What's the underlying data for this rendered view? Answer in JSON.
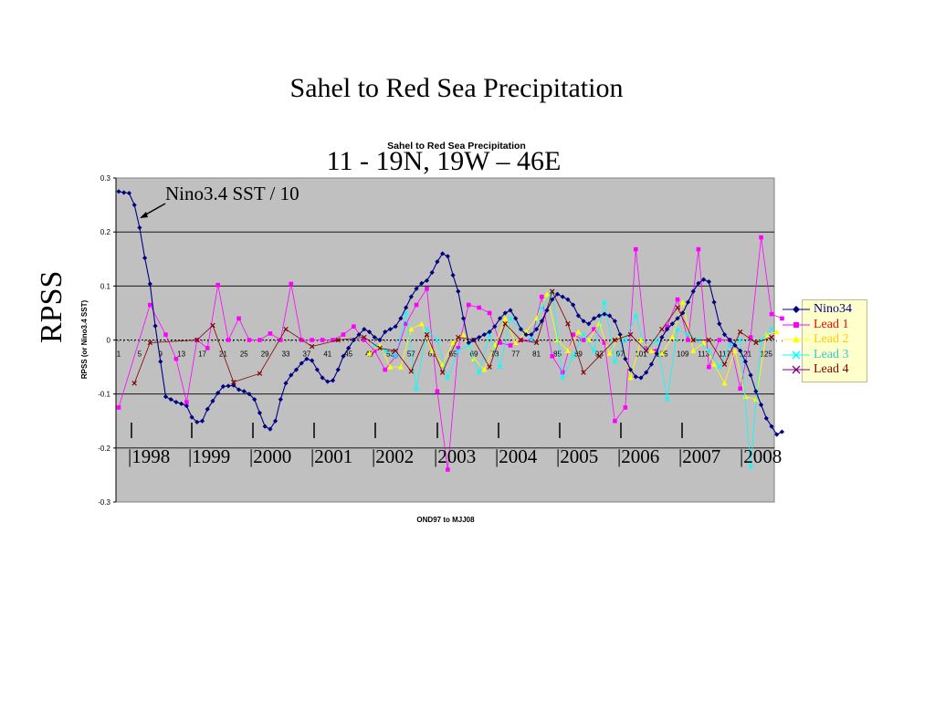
{
  "slide": {
    "title": "Sahel to Red Sea Precipitation",
    "subtitle": "11 - 19N,  19W – 46E",
    "side_label": "RPSS",
    "annotation": "Nino3.4 SST / 10"
  },
  "chart_data": {
    "type": "line",
    "title": "Sahel to Red Sea Precipitation",
    "xlabel": "OND97 to MJJ08",
    "ylabel": "RPSS (or Nino3.4 SST)",
    "ylim": [
      -0.3,
      0.3
    ],
    "yticks": [
      -0.3,
      -0.2,
      -0.1,
      0,
      0.1,
      0.2,
      0.3
    ],
    "yticklabels": [
      "-0.3",
      "-0.2",
      "-0.1",
      "0",
      "0.1",
      "0.2",
      "0.3"
    ],
    "xlim": [
      1,
      128
    ],
    "xticks": [
      1,
      5,
      9,
      13,
      17,
      21,
      25,
      29,
      33,
      37,
      41,
      45,
      49,
      53,
      57,
      61,
      65,
      69,
      73,
      77,
      81,
      85,
      89,
      93,
      97,
      101,
      105,
      109,
      113,
      117,
      121,
      125
    ],
    "grid": "horizontal",
    "plot_background": "#c0c0c0",
    "legend_position": "right",
    "year_labels": [
      "|1998",
      "|1999",
      "|2000",
      "|2001",
      "|2002",
      "|2003",
      "|2004",
      "|2005",
      "|2006",
      "|2007",
      "|2008"
    ],
    "series": [
      {
        "name": "Nino34",
        "color": "#000080",
        "marker": "diamond",
        "line": true,
        "x": [
          1,
          2,
          3,
          4,
          5,
          6,
          7,
          8,
          9,
          10,
          11,
          12,
          13,
          14,
          15,
          16,
          17,
          18,
          19,
          20,
          21,
          22,
          23,
          24,
          25,
          26,
          27,
          28,
          29,
          30,
          31,
          32,
          33,
          34,
          35,
          36,
          37,
          38,
          39,
          40,
          41,
          42,
          43,
          44,
          45,
          46,
          47,
          48,
          49,
          50,
          51,
          52,
          53,
          54,
          55,
          56,
          57,
          58,
          59,
          60,
          61,
          62,
          63,
          64,
          65,
          66,
          67,
          68,
          69,
          70,
          71,
          72,
          73,
          74,
          75,
          76,
          77,
          78,
          79,
          80,
          81,
          82,
          83,
          84,
          85,
          86,
          87,
          88,
          89,
          90,
          91,
          92,
          93,
          94,
          95,
          96,
          97,
          98,
          99,
          100,
          101,
          102,
          103,
          104,
          105,
          106,
          107,
          108,
          109,
          110,
          111,
          112,
          113,
          114,
          115,
          116,
          117,
          118,
          119,
          120,
          121,
          122,
          123,
          124,
          125,
          126,
          127,
          128
        ],
        "y": [
          0.275,
          0.273,
          0.272,
          0.25,
          0.208,
          0.152,
          0.104,
          0.026,
          -0.04,
          -0.105,
          -0.11,
          -0.115,
          -0.118,
          -0.122,
          -0.143,
          -0.152,
          -0.15,
          -0.128,
          -0.113,
          -0.098,
          -0.086,
          -0.085,
          -0.084,
          -0.092,
          -0.095,
          -0.1,
          -0.11,
          -0.135,
          -0.16,
          -0.165,
          -0.15,
          -0.11,
          -0.08,
          -0.065,
          -0.055,
          -0.043,
          -0.035,
          -0.038,
          -0.055,
          -0.07,
          -0.077,
          -0.075,
          -0.055,
          -0.03,
          -0.015,
          0.0,
          0.01,
          0.02,
          0.015,
          0.005,
          0.0,
          0.015,
          0.02,
          0.025,
          0.04,
          0.06,
          0.08,
          0.095,
          0.105,
          0.11,
          0.125,
          0.145,
          0.16,
          0.155,
          0.12,
          0.09,
          0.04,
          -0.005,
          0.0,
          0.005,
          0.01,
          0.015,
          0.025,
          0.04,
          0.05,
          0.055,
          0.04,
          0.02,
          0.01,
          0.01,
          0.02,
          0.035,
          0.055,
          0.075,
          0.085,
          0.08,
          0.075,
          0.065,
          0.045,
          0.035,
          0.03,
          0.04,
          0.045,
          0.048,
          0.045,
          0.035,
          0.01,
          -0.035,
          -0.055,
          -0.068,
          -0.07,
          -0.06,
          -0.045,
          -0.025,
          0.005,
          0.02,
          0.03,
          0.04,
          0.05,
          0.07,
          0.09,
          0.105,
          0.112,
          0.108,
          0.07,
          0.03,
          0.01,
          0.0,
          -0.01,
          -0.02,
          -0.04,
          -0.065,
          -0.095,
          -0.12,
          -0.145,
          -0.16,
          -0.175,
          -0.17
        ]
      },
      {
        "name": "Lead 1",
        "color": "#ff00ff",
        "marker": "square",
        "line": true,
        "x": [
          1,
          7,
          10,
          12,
          14,
          16,
          18,
          20,
          22,
          24,
          26,
          28,
          30,
          32,
          34,
          36,
          38,
          40,
          42,
          44,
          46,
          48,
          50,
          52,
          54,
          56,
          58,
          60,
          62,
          64,
          66,
          68,
          70,
          72,
          74,
          76,
          78,
          80,
          82,
          84,
          86,
          88,
          90,
          92,
          94,
          96,
          98,
          100,
          102,
          104,
          106,
          108,
          110,
          112,
          114,
          116,
          118,
          120,
          122,
          124,
          126,
          128
        ],
        "y": [
          -0.125,
          0.065,
          0.01,
          -0.035,
          -0.115,
          0.0,
          -0.015,
          0.102,
          0.0,
          0.04,
          0.0,
          0.0,
          0.012,
          0.0,
          0.104,
          0.0,
          0.0,
          0.0,
          0.0,
          0.01,
          0.025,
          0.0,
          -0.02,
          -0.055,
          -0.03,
          0.03,
          0.065,
          0.095,
          -0.095,
          -0.24,
          -0.015,
          0.065,
          0.06,
          0.05,
          -0.005,
          -0.01,
          0.0,
          0.0,
          0.08,
          -0.03,
          -0.06,
          0.01,
          0.0,
          0.02,
          -0.005,
          -0.15,
          -0.125,
          0.168,
          -0.015,
          -0.02,
          0.025,
          0.075,
          0.0,
          0.168,
          -0.05,
          0.0,
          0.0,
          -0.09,
          0.005,
          0.19,
          0.048,
          0.04
        ]
      },
      {
        "name": "Lead 2",
        "color": "#ffff00",
        "marker": "triangle",
        "line": true,
        "x": [
          49,
          51,
          53,
          55,
          57,
          59,
          61,
          63,
          65,
          67,
          69,
          71,
          73,
          75,
          77,
          79,
          81,
          83,
          85,
          87,
          89,
          91,
          93,
          95,
          97,
          99,
          101,
          103,
          105,
          107,
          109,
          111,
          113,
          115,
          117,
          119,
          121,
          123,
          125,
          127
        ],
        "y": [
          -0.025,
          -0.01,
          -0.05,
          -0.05,
          0.02,
          0.03,
          -0.02,
          -0.045,
          -0.005,
          0.01,
          -0.035,
          -0.055,
          -0.01,
          0.04,
          -0.005,
          0.015,
          0.04,
          0.085,
          0.0,
          -0.02,
          0.015,
          0.0,
          0.03,
          -0.025,
          0.01,
          -0.07,
          0.0,
          -0.02,
          -0.025,
          0.005,
          0.07,
          -0.02,
          -0.005,
          -0.045,
          -0.08,
          -0.02,
          -0.105,
          -0.11,
          0.01,
          0.015
        ]
      },
      {
        "name": "Lead 3",
        "color": "#00ffff",
        "marker": "x-line",
        "line": true,
        "x": [
          50,
          52,
          54,
          56,
          58,
          60,
          62,
          64,
          66,
          68,
          70,
          72,
          74,
          76,
          78,
          80,
          82,
          84,
          86,
          88,
          90,
          92,
          94,
          96,
          98,
          100,
          102,
          104,
          106,
          108,
          110,
          112,
          114,
          116,
          118,
          120,
          122,
          124,
          126
        ],
        "y": [
          -0.01,
          -0.02,
          -0.03,
          0.05,
          -0.09,
          0.02,
          0.0,
          -0.07,
          -0.02,
          -0.01,
          -0.06,
          0.01,
          -0.05,
          0.04,
          0.02,
          0.0,
          0.06,
          0.09,
          -0.07,
          -0.03,
          0.01,
          -0.02,
          0.07,
          -0.04,
          0.0,
          0.045,
          -0.02,
          0.0,
          -0.11,
          0.02,
          0.01,
          0.0,
          -0.02,
          -0.05,
          -0.01,
          0.0,
          -0.235,
          0.0,
          0.02
        ]
      },
      {
        "name": "Lead 4",
        "color": "#800000",
        "marker": "star",
        "line": true,
        "x": [
          4,
          7,
          16,
          19,
          23,
          28,
          33,
          38,
          43,
          48,
          51,
          54,
          57,
          60,
          63,
          66,
          69,
          72,
          75,
          78,
          81,
          84,
          87,
          90,
          93,
          96,
          99,
          102,
          105,
          108,
          111,
          114,
          117,
          120,
          123,
          126
        ],
        "y": [
          -0.08,
          -0.005,
          0.0,
          0.027,
          -0.078,
          -0.062,
          0.02,
          -0.012,
          0.0,
          0.005,
          -0.015,
          -0.02,
          -0.058,
          0.01,
          -0.06,
          0.005,
          0.0,
          -0.05,
          0.03,
          0.0,
          -0.005,
          0.09,
          0.03,
          -0.06,
          -0.03,
          0.0,
          0.01,
          -0.02,
          0.02,
          0.06,
          0.0,
          0.0,
          -0.045,
          0.015,
          -0.005,
          0.005
        ]
      }
    ]
  }
}
